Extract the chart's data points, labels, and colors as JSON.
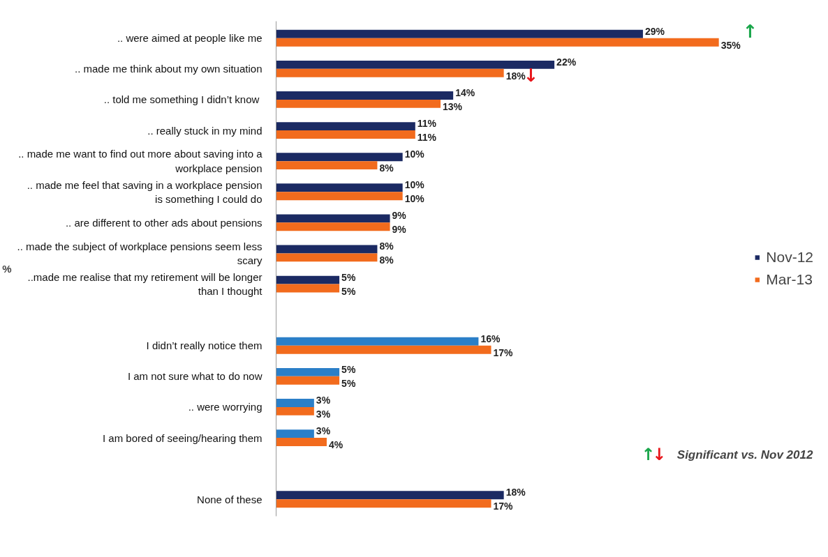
{
  "chart_data": {
    "type": "bar",
    "orientation": "horizontal",
    "categories": [
      ".. were aimed at people like me",
      ".. made me think about my own situation",
      ".. told me something I  didn’t know",
      ".. really stuck in my mind",
      ".. made me want to find out more about saving into a\nworkplace pension",
      ".. made me feel that saving in a workplace pension\nis something I could do",
      ".. are different to other ads about pensions",
      ".. made the subject of workplace pensions seem less\nscary",
      "..made me realise that my retirement will be longer\nthan I thought",
      null,
      "I didn’t really notice them",
      "I am not sure what to do now",
      ".. were worrying",
      "I am bored of seeing/hearing them",
      null,
      "None of these"
    ],
    "series": [
      {
        "name": "Nov-12",
        "color": "#1b2a63",
        "colors": [
          "#1b2a63",
          "#1b2a63",
          "#1b2a63",
          "#1b2a63",
          "#1b2a63",
          "#1b2a63",
          "#1b2a63",
          "#1b2a63",
          "#1b2a63",
          null,
          "#2b7fc8",
          "#2b7fc8",
          "#2b7fc8",
          "#2b7fc8",
          null,
          "#1b2a63"
        ],
        "values": [
          29,
          22,
          14,
          11,
          10,
          10,
          9,
          8,
          5,
          null,
          16,
          5,
          3,
          3,
          null,
          18
        ],
        "value_labels": [
          "29%",
          "22%",
          "14%",
          "11%",
          "10%",
          "10%",
          "9%",
          "8%",
          "5%",
          null,
          "16%",
          "5%",
          "3%",
          "3%",
          null,
          "18%"
        ]
      },
      {
        "name": "Mar-13",
        "color": "#f26b1d",
        "values": [
          35,
          18,
          13,
          11,
          8,
          10,
          9,
          8,
          5,
          null,
          17,
          5,
          3,
          4,
          null,
          17
        ],
        "value_labels": [
          "35%",
          "18%",
          "13%",
          "11%",
          "8%",
          "10%",
          "9%",
          "8%",
          "5%",
          null,
          "17%",
          "5%",
          "3%",
          "4%",
          null,
          "17%"
        ]
      }
    ],
    "ylabel": "%",
    "legend": "right",
    "grid": false,
    "annotations": [
      {
        "text": "↑",
        "x": 35,
        "y": ".. were aimed at people like me"
      },
      {
        "text": "↓",
        "x": 18,
        "y": ".. made me think about my own situation"
      },
      "↑",
      "↓",
      "Significant  vs. Nov 2012"
    ]
  }
}
